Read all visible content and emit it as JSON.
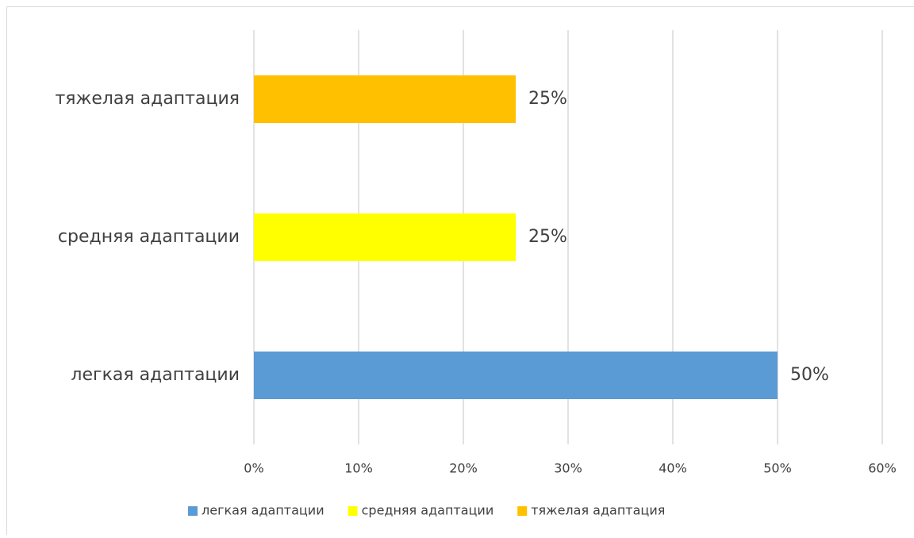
{
  "chart_data": {
    "type": "barh",
    "categories": [
      "легкая адаптации",
      "средняя адаптации",
      "тяжелая адаптация"
    ],
    "values": [
      50,
      25,
      25
    ],
    "value_labels": [
      "50%",
      "25%",
      "25%"
    ],
    "colors": [
      "#5b9bd5",
      "#ffff00",
      "#ffc000"
    ],
    "xlim": [
      0,
      60
    ],
    "xticks": [
      {
        "value": 0,
        "label": "0%"
      },
      {
        "value": 10,
        "label": "10%"
      },
      {
        "value": 20,
        "label": "20%"
      },
      {
        "value": 30,
        "label": "30%"
      },
      {
        "value": 40,
        "label": "40%"
      },
      {
        "value": 50,
        "label": "50%"
      },
      {
        "value": 60,
        "label": "60%"
      }
    ],
    "grid": true,
    "legend": "bottom"
  }
}
